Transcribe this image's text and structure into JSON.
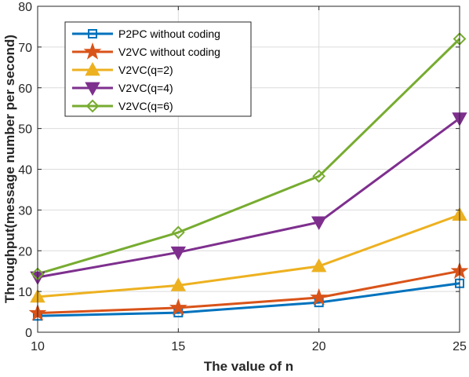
{
  "chart_data": {
    "type": "line",
    "xlabel": "The value of n",
    "ylabel": "Throughput(message number per second)",
    "xlim": [
      10,
      25
    ],
    "ylim": [
      0,
      80
    ],
    "xticks": [
      10,
      15,
      20,
      25
    ],
    "yticks": [
      0,
      10,
      20,
      30,
      40,
      50,
      60,
      70,
      80
    ],
    "grid": true,
    "legend_position": "top-left",
    "x": [
      10,
      15,
      20,
      25
    ],
    "series": [
      {
        "name": "P2PC without coding",
        "values": [
          4.0,
          4.8,
          7.3,
          12.0
        ],
        "color": "#0072BD",
        "marker": "square"
      },
      {
        "name": "V2VC without coding",
        "values": [
          4.7,
          6.0,
          8.5,
          15.0
        ],
        "color": "#D95319",
        "marker": "star"
      },
      {
        "name": "V2VC(q=2)",
        "values": [
          8.7,
          11.5,
          16.2,
          28.8
        ],
        "color": "#EDB120",
        "marker": "triangle-up"
      },
      {
        "name": "V2VC(q=4)",
        "values": [
          13.5,
          19.6,
          27.0,
          52.5
        ],
        "color": "#7E2F8E",
        "marker": "triangle-down"
      },
      {
        "name": "V2VC(q=6)",
        "values": [
          14.3,
          24.5,
          38.3,
          72.0
        ],
        "color": "#77AC30",
        "marker": "diamond"
      }
    ]
  }
}
